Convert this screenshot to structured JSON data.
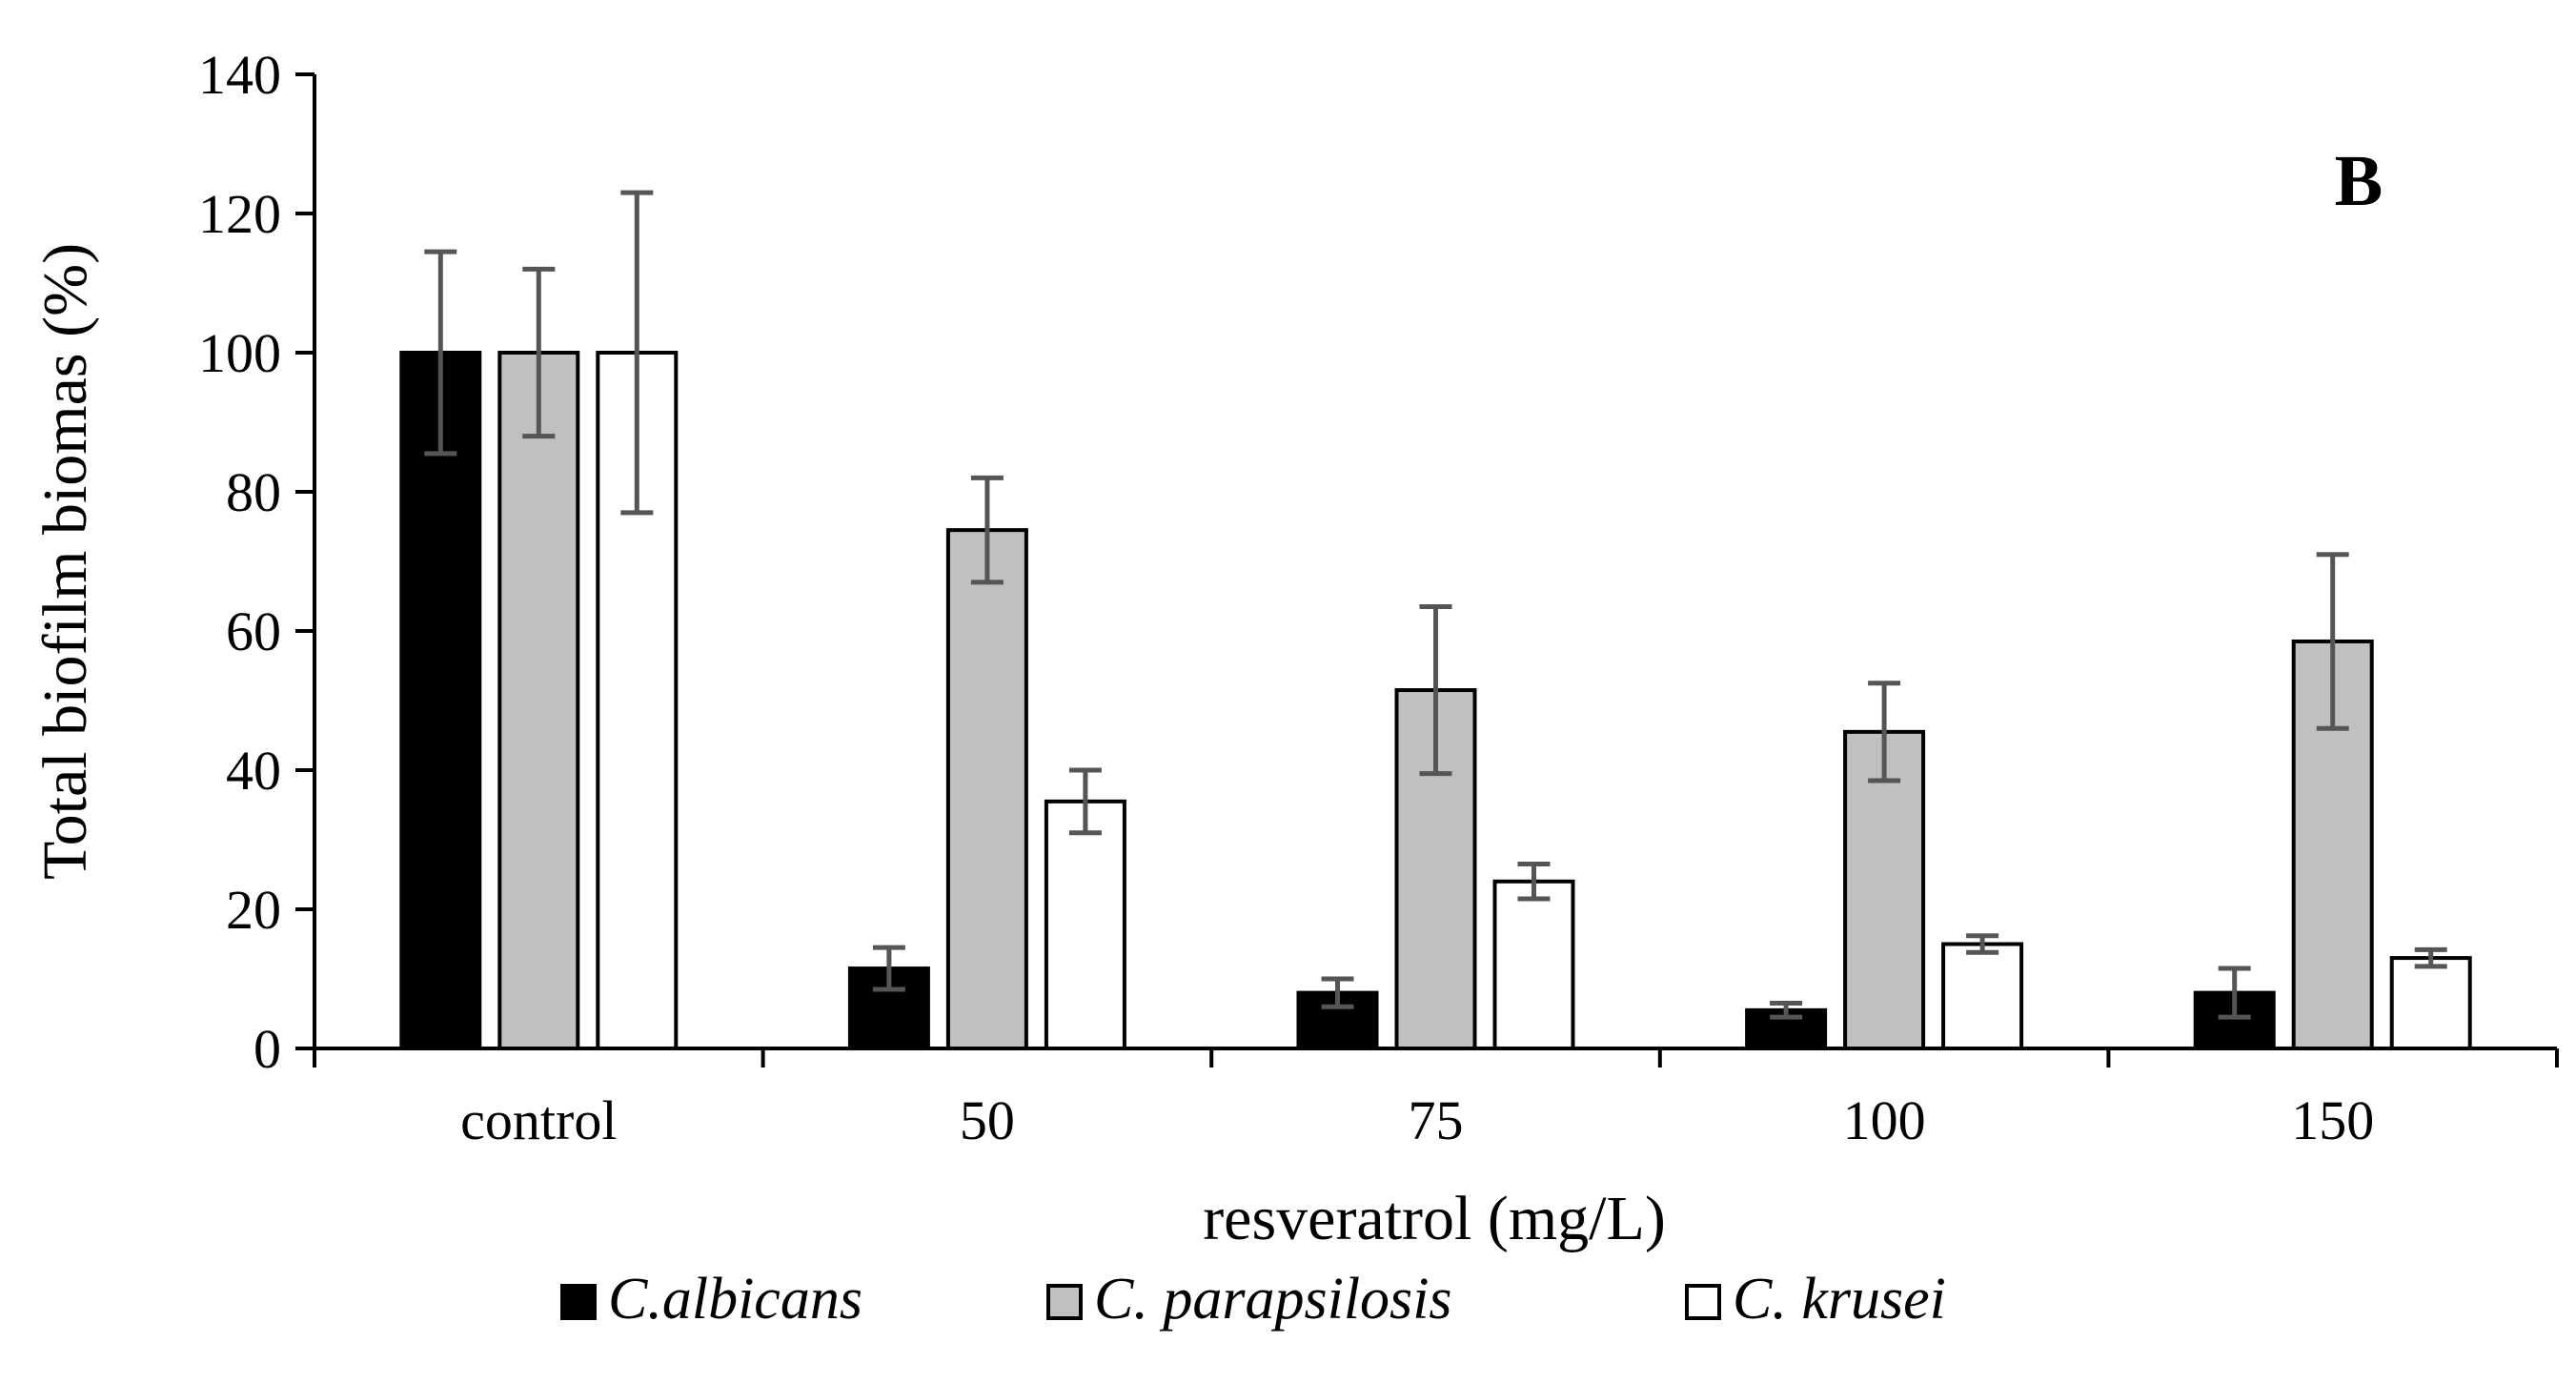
{
  "chart_data": {
    "type": "bar",
    "panel_label": "B",
    "title": "",
    "xlabel": "resveratrol (mg/L)",
    "ylabel": "Total biofilm biomas (%)",
    "ylim": [
      0,
      140
    ],
    "yticks": [
      0,
      20,
      40,
      60,
      80,
      100,
      120,
      140
    ],
    "ytick_labels": [
      "0",
      "20",
      "40",
      "60",
      "80",
      "100",
      "120",
      "140"
    ],
    "categories": [
      "control",
      "50",
      "75",
      "100",
      "150"
    ],
    "grid": false,
    "legend_position": "bottom",
    "series": [
      {
        "name": "C.albicans",
        "color": "#000000",
        "values": [
          100,
          11.5,
          8,
          5.5,
          8
        ],
        "errors": [
          14.5,
          3,
          2,
          1,
          3.5
        ]
      },
      {
        "name": "C. parapsilosis",
        "color": "#c0c0c0",
        "values": [
          100,
          74.5,
          51.5,
          45.5,
          58.5
        ],
        "errors": [
          12,
          7.5,
          12,
          7,
          12.5
        ]
      },
      {
        "name": "C. krusei",
        "color": "#ffffff",
        "values": [
          100,
          35.5,
          24,
          15,
          13
        ],
        "errors": [
          23,
          4.5,
          2.5,
          1.2,
          1.2
        ]
      }
    ]
  }
}
